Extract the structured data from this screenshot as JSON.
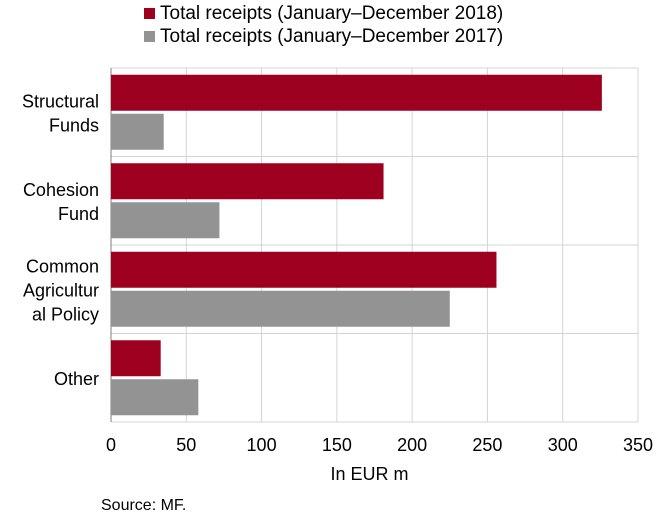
{
  "chart_data": {
    "type": "bar",
    "orientation": "horizontal",
    "categories": [
      [
        "Structural",
        "Funds"
      ],
      [
        "Cohesion",
        "Fund"
      ],
      [
        "Common",
        "Agricultur",
        "al Policy"
      ],
      [
        "Other"
      ]
    ],
    "series": [
      {
        "name": "Total receipts (January–December 2018)",
        "color": "#9e0020",
        "values": [
          326,
          181,
          256,
          33
        ]
      },
      {
        "name": "Total receipts (January–December 2017)",
        "color": "#939393",
        "values": [
          35,
          72,
          225,
          58
        ]
      }
    ],
    "xlabel": "In EUR m",
    "xlim": [
      0,
      350
    ],
    "xticks": [
      0,
      50,
      100,
      150,
      200,
      250,
      300,
      350
    ],
    "grid": true,
    "legend_position": "top"
  },
  "source": "Source: MF."
}
